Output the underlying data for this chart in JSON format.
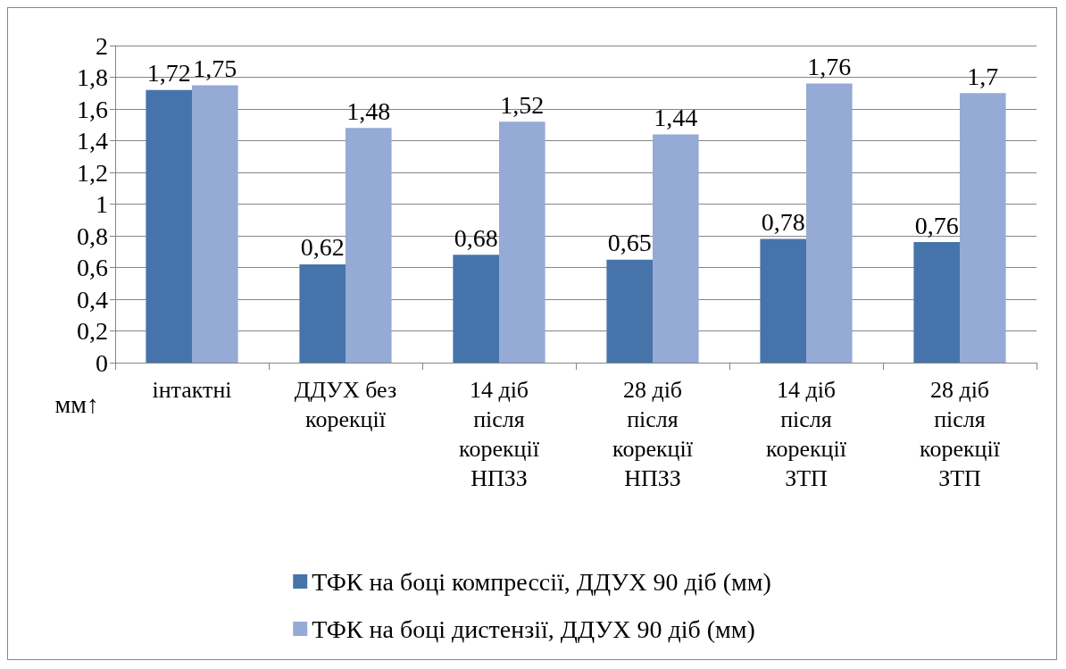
{
  "chart_data": {
    "type": "bar",
    "ylabel": "мм↑",
    "categories": [
      "інтактні",
      "ДДУХ без корекції",
      "14 діб після корекції НПЗЗ",
      "28 діб після корекції НПЗЗ",
      "14 діб після корекції ЗТП",
      "28 діб після корекції ЗТП"
    ],
    "series": [
      {
        "name": "ТФК на боці компрессії, ДДУХ 90 діб (мм)",
        "color": "#4674aa",
        "values": [
          1.72,
          0.62,
          0.68,
          0.65,
          0.78,
          0.76
        ],
        "value_labels": [
          "1,72",
          "0,62",
          "0,68",
          "0,65",
          "0,78",
          "0,76"
        ]
      },
      {
        "name": "ТФК на боці дистензії, ДДУХ 90 діб (мм)",
        "color": "#95aad4",
        "values": [
          1.75,
          1.48,
          1.52,
          1.44,
          1.76,
          1.7
        ],
        "value_labels": [
          "1,75",
          "1,48",
          "1,52",
          "1,44",
          "1,76",
          "1,7"
        ]
      }
    ],
    "ylim": [
      0,
      2
    ],
    "yticks": [
      0,
      {
        "value": 0.2,
        "label": "0,2"
      },
      {
        "value": 0.4,
        "label": "0,4"
      },
      {
        "value": 0.6,
        "label": "0,6"
      },
      {
        "value": 0.8,
        "label": "0,8"
      },
      1,
      {
        "value": 1.2,
        "label": "1,2"
      },
      {
        "value": 1.4,
        "label": "1,4"
      },
      {
        "value": 1.6,
        "label": "1,6"
      },
      {
        "value": 1.8,
        "label": "1,8"
      },
      2
    ],
    "grid": "y",
    "legend": "bottom"
  }
}
